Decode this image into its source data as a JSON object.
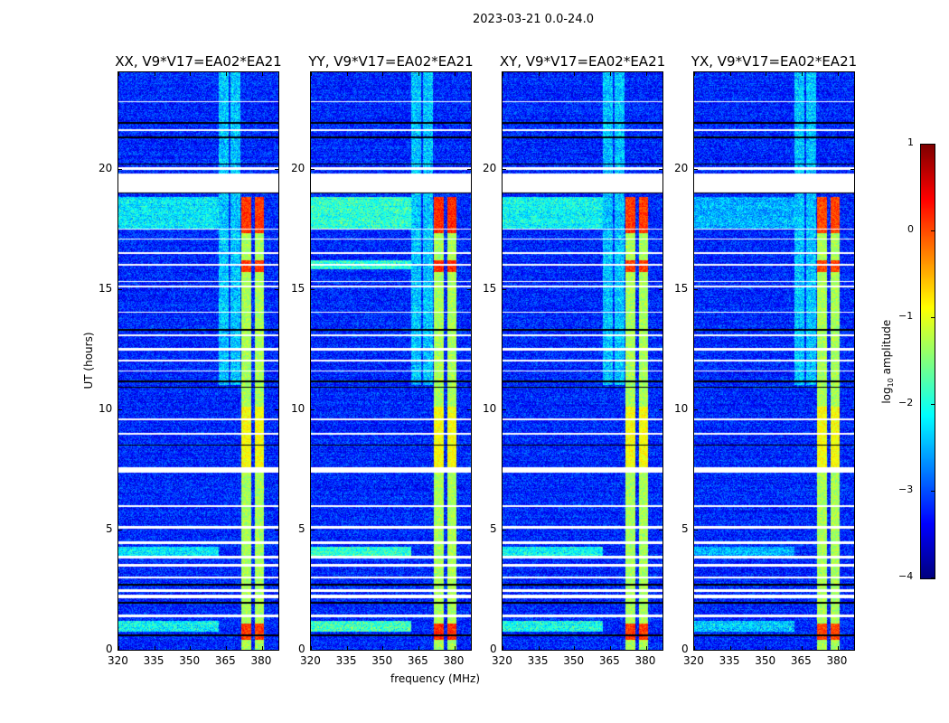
{
  "figure_title": "2023-03-21 0.0-24.0",
  "chart_data": {
    "type": "heatmap",
    "title": "2023-03-21 0.0-24.0",
    "xlabel": "frequency (MHz)",
    "ylabel": "UT (hours)",
    "xlim": [
      320,
      387
    ],
    "ylim": [
      0,
      24
    ],
    "xticks": [
      "320",
      "335",
      "350",
      "365",
      "380"
    ],
    "xtick_values": [
      320,
      335,
      350,
      365,
      380
    ],
    "yticks": [
      "0",
      "5",
      "10",
      "15",
      "20"
    ],
    "ytick_values": [
      0,
      5,
      10,
      15,
      20
    ],
    "panels": [
      {
        "title": "XX, V9*V17=EA02*EA21",
        "rfi_strength": 1.0,
        "lowband_strength": 0.8
      },
      {
        "title": "YY, V9*V17=EA02*EA21",
        "rfi_strength": 1.05,
        "lowband_strength": 1.1
      },
      {
        "title": "XY, V9*V17=EA02*EA21",
        "rfi_strength": 1.0,
        "lowband_strength": 0.9
      },
      {
        "title": "YX, V9*V17=EA02*EA21",
        "rfi_strength": 0.95,
        "lowband_strength": 0.5
      }
    ],
    "colorbar": {
      "label": "log10 amplitude",
      "label_main": "log",
      "label_sub": "10",
      "label_rest": " amplitude",
      "range": [
        -4,
        1
      ],
      "ticks": [
        "−4",
        "−3",
        "−2",
        "−1",
        "0",
        "1"
      ],
      "tick_values": [
        -4,
        -3,
        -2,
        -1,
        0,
        1
      ],
      "colormap": "jet"
    },
    "background_level": -3.2,
    "flagged_ut_ranges": [
      [
        19.02,
        19.8
      ],
      [
        1.35,
        1.45
      ],
      [
        2.15,
        2.3
      ],
      [
        2.4,
        2.5
      ],
      [
        2.95,
        3.05
      ],
      [
        3.45,
        3.55
      ],
      [
        3.8,
        3.9
      ],
      [
        4.4,
        4.5
      ],
      [
        5.05,
        5.15
      ],
      [
        5.95,
        6.02
      ],
      [
        7.35,
        7.6
      ],
      [
        8.95,
        9.02
      ],
      [
        9.55,
        9.62
      ],
      [
        11.55,
        11.62
      ],
      [
        12.0,
        12.07
      ],
      [
        12.45,
        12.55
      ],
      [
        13.05,
        13.12
      ],
      [
        14.0,
        14.05
      ],
      [
        15.05,
        15.12
      ],
      [
        15.28,
        15.34
      ],
      [
        15.95,
        16.05
      ],
      [
        16.45,
        16.52
      ],
      [
        17.05,
        17.1
      ],
      [
        17.45,
        17.5
      ],
      [
        19.95,
        20.05
      ],
      [
        21.55,
        21.62
      ],
      [
        22.75,
        22.8
      ]
    ],
    "dark_ut_lines": [
      0.6,
      1.95,
      2.7,
      8.5,
      10.9,
      11.15,
      13.3,
      19.0,
      19.1,
      20.2,
      21.3,
      21.9
    ],
    "rfi_bands_mhz": [
      [
        362,
        366
      ],
      [
        367,
        371
      ],
      [
        371.5,
        375.5
      ],
      [
        377,
        381
      ]
    ]
  }
}
